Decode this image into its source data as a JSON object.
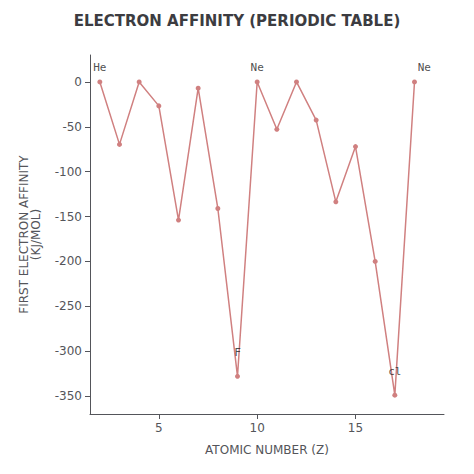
{
  "chart_data": {
    "type": "line",
    "title": "ELECTRON AFFINITY (PERIODIC TABLE)",
    "x_label": "ATOMIC NUMBER (Z)",
    "y_label": "FIRST ELECTRON AFFINITY\n(KJ/MOL)",
    "x": [
      2,
      3,
      4,
      5,
      6,
      7,
      8,
      9,
      10,
      11,
      12,
      13,
      14,
      15,
      16,
      17,
      18
    ],
    "values": [
      0,
      -69.6,
      0,
      -26.7,
      -153.9,
      -7,
      -141,
      -328,
      0,
      -52.8,
      0,
      -42.5,
      -133.6,
      -72,
      -200,
      -349,
      0
    ],
    "color": "#d08080",
    "marker": "o",
    "xlim": [
      1.5,
      19.5
    ],
    "xticks": [
      5,
      10,
      15
    ],
    "ylim": [
      -370,
      30
    ],
    "yticks": [
      -350,
      -300,
      -250,
      -200,
      -150,
      -100,
      -50,
      0
    ],
    "grid": false,
    "annotations": [
      {
        "text": "F",
        "x": 9,
        "y": -308
      },
      {
        "text": "cl",
        "x": 17,
        "y": -329
      },
      {
        "text": "He",
        "x": 2,
        "y": 10
      },
      {
        "text": "Ne",
        "x": 10,
        "y": 10
      },
      {
        "text": "Ne",
        "x": 18.5,
        "y": 10
      }
    ]
  }
}
